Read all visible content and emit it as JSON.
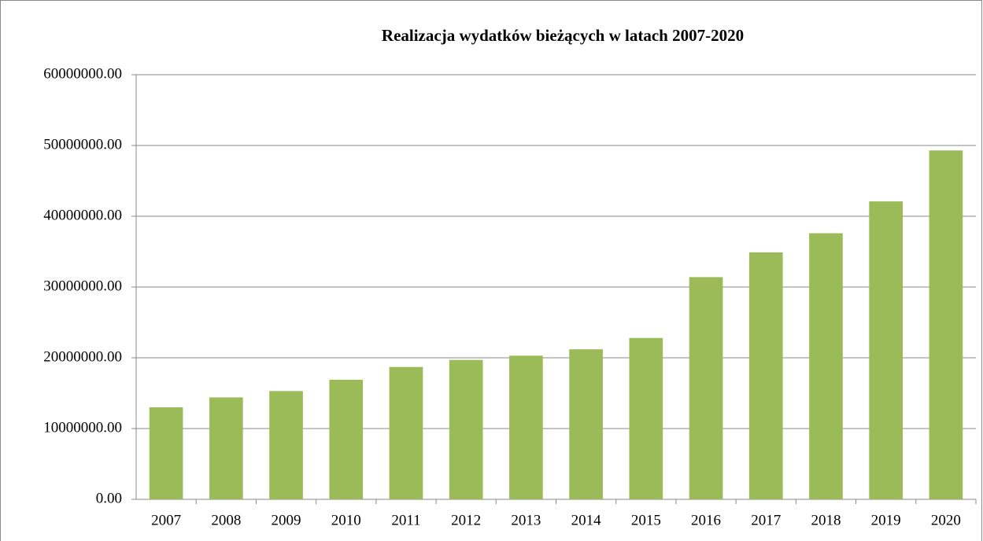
{
  "chart_data": {
    "type": "bar",
    "title": "Realizacja wydatków  bieżących w latach 2007-2020",
    "categories": [
      "2007",
      "2008",
      "2009",
      "2010",
      "2011",
      "2012",
      "2013",
      "2014",
      "2015",
      "2016",
      "2017",
      "2018",
      "2019",
      "2020"
    ],
    "values": [
      13000000,
      14400000,
      15300000,
      16900000,
      18700000,
      19700000,
      20300000,
      21200000,
      22800000,
      31400000,
      34900000,
      37600000,
      42100000,
      49300000
    ],
    "color": "#9bbb59",
    "ylim": [
      0,
      60000000
    ],
    "yticks": [
      {
        "value": 0,
        "label": "0.00"
      },
      {
        "value": 10000000,
        "label": "10000000.00"
      },
      {
        "value": 20000000,
        "label": "20000000.00"
      },
      {
        "value": 30000000,
        "label": "30000000.00"
      },
      {
        "value": 40000000,
        "label": "40000000.00"
      },
      {
        "value": 50000000,
        "label": "50000000.00"
      },
      {
        "value": 60000000,
        "label": "60000000.00"
      }
    ],
    "grid": true
  }
}
